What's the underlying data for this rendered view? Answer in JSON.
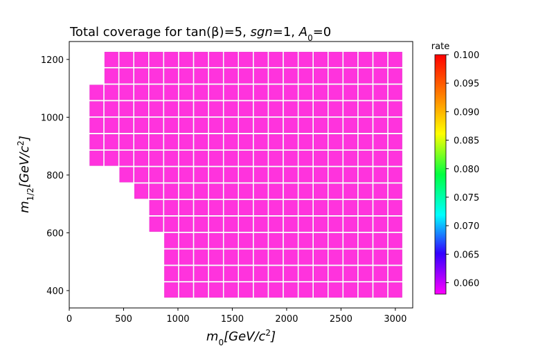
{
  "chart_data": {
    "type": "heatmap",
    "title": "Total coverage for tan(β)=5, sgn=1, A₀=0",
    "title_parts": [
      "Total coverage for tan(",
      "β",
      ")=5, ",
      "sgn",
      "=1, ",
      "A",
      "0",
      "=0"
    ],
    "xlabel": "m0[GeV/c2]",
    "xlabel_parts": [
      "m",
      "0",
      "[GeV/c",
      "2",
      "]"
    ],
    "ylabel": "m1/2[GeV/c2]",
    "ylabel_parts": [
      "m",
      "1/2",
      "[GeV/c",
      "2",
      "]"
    ],
    "xlim": [
      0,
      3160
    ],
    "ylim": [
      340,
      1262
    ],
    "xticks": [
      0,
      500,
      1000,
      1500,
      2000,
      2500,
      3000
    ],
    "yticks": [
      400,
      600,
      800,
      1000,
      1200
    ],
    "x_step": 137.5,
    "y_step": 57,
    "cell_fill_fraction": 0.9,
    "x_start": 250,
    "columns": 21,
    "row_spans": [
      {
        "y": 1200,
        "x_min": 387.5,
        "x_max": 3000
      },
      {
        "y": 1143,
        "x_min": 387.5,
        "x_max": 3000
      },
      {
        "y": 1086,
        "x_min": 250,
        "x_max": 3000
      },
      {
        "y": 1029,
        "x_min": 250,
        "x_max": 3000
      },
      {
        "y": 972,
        "x_min": 250,
        "x_max": 3000
      },
      {
        "y": 915,
        "x_min": 250,
        "x_max": 3000
      },
      {
        "y": 858,
        "x_min": 250,
        "x_max": 3000
      },
      {
        "y": 801,
        "x_min": 525,
        "x_max": 3000
      },
      {
        "y": 744,
        "x_min": 662.5,
        "x_max": 3000
      },
      {
        "y": 687,
        "x_min": 800,
        "x_max": 3000
      },
      {
        "y": 630,
        "x_min": 800,
        "x_max": 3000
      },
      {
        "y": 573,
        "x_min": 937.5,
        "x_max": 3000
      },
      {
        "y": 516,
        "x_min": 937.5,
        "x_max": 3000
      },
      {
        "y": 459,
        "x_min": 937.5,
        "x_max": 3000
      },
      {
        "y": 402,
        "x_min": 937.5,
        "x_max": 3000
      }
    ],
    "cell_value": 0.058,
    "cell_color": "#ff33dd",
    "colorbar": {
      "label": "rate",
      "range": [
        0.058,
        0.1
      ],
      "ticks": [
        "0.060",
        "0.065",
        "0.070",
        "0.075",
        "0.080",
        "0.085",
        "0.090",
        "0.095",
        "0.100"
      ],
      "tick_values": [
        0.06,
        0.065,
        0.07,
        0.075,
        0.08,
        0.085,
        0.09,
        0.095,
        0.1
      ],
      "colormap": "gist_rainbow_r"
    },
    "grid": false
  }
}
